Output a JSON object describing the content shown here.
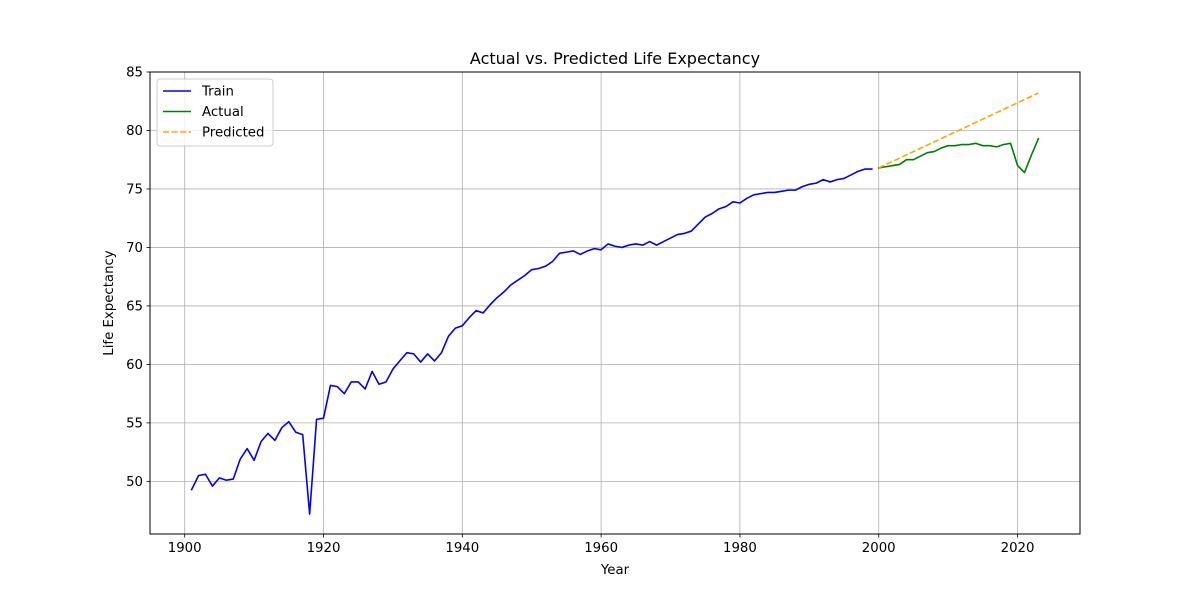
{
  "chart_data": {
    "type": "line",
    "title": "Actual vs. Predicted Life Expectancy",
    "xlabel": "Year",
    "ylabel": "Life Expectancy",
    "xlim": [
      1895,
      2029
    ],
    "ylim": [
      45.5,
      85
    ],
    "xticks": [
      1900,
      1920,
      1940,
      1960,
      1980,
      2000,
      2020
    ],
    "yticks": [
      50,
      55,
      60,
      65,
      70,
      75,
      80,
      85
    ],
    "grid": true,
    "legend_position": "top-left",
    "series": [
      {
        "name": "Train",
        "color": "#0000ff",
        "style": "solid",
        "x": [
          1901,
          1902,
          1903,
          1904,
          1905,
          1906,
          1907,
          1908,
          1909,
          1910,
          1911,
          1912,
          1913,
          1914,
          1915,
          1916,
          1917,
          1918,
          1919,
          1920,
          1921,
          1922,
          1923,
          1924,
          1925,
          1926,
          1927,
          1928,
          1929,
          1930,
          1931,
          1932,
          1933,
          1934,
          1935,
          1936,
          1937,
          1938,
          1939,
          1940,
          1941,
          1942,
          1943,
          1944,
          1945,
          1946,
          1947,
          1948,
          1949,
          1950,
          1951,
          1952,
          1953,
          1954,
          1955,
          1956,
          1957,
          1958,
          1959,
          1960,
          1961,
          1962,
          1963,
          1964,
          1965,
          1966,
          1967,
          1968,
          1969,
          1970,
          1971,
          1972,
          1973,
          1974,
          1975,
          1976,
          1977,
          1978,
          1979,
          1980,
          1981,
          1982,
          1983,
          1984,
          1985,
          1986,
          1987,
          1988,
          1989,
          1990,
          1991,
          1992,
          1993,
          1994,
          1995,
          1996,
          1997,
          1998,
          1999
        ],
        "y": [
          49.3,
          50.5,
          50.6,
          49.6,
          50.3,
          50.1,
          50.2,
          51.9,
          52.8,
          51.8,
          53.4,
          54.1,
          53.5,
          54.6,
          55.1,
          54.2,
          54.0,
          47.2,
          55.3,
          55.4,
          58.2,
          58.1,
          57.5,
          58.5,
          58.5,
          57.9,
          59.4,
          58.3,
          58.5,
          59.6,
          60.3,
          61.0,
          60.9,
          60.2,
          60.9,
          60.3,
          61.0,
          62.4,
          63.1,
          63.3,
          64.0,
          64.6,
          64.4,
          65.1,
          65.7,
          66.2,
          66.8,
          67.2,
          67.6,
          68.1,
          68.2,
          68.4,
          68.8,
          69.5,
          69.6,
          69.7,
          69.4,
          69.7,
          69.9,
          69.8,
          70.3,
          70.1,
          70.0,
          70.2,
          70.3,
          70.2,
          70.5,
          70.2,
          70.5,
          70.8,
          71.1,
          71.2,
          71.4,
          72.0,
          72.6,
          72.9,
          73.3,
          73.5,
          73.9,
          73.8,
          74.2,
          74.5,
          74.6,
          74.7,
          74.7,
          74.8,
          74.9,
          74.9,
          75.2,
          75.4,
          75.5,
          75.8,
          75.6,
          75.8,
          75.9,
          76.2,
          76.5,
          76.7,
          76.7
        ]
      },
      {
        "name": "Actual",
        "color": "#008000",
        "style": "solid",
        "x": [
          2000,
          2001,
          2002,
          2003,
          2004,
          2005,
          2006,
          2007,
          2008,
          2009,
          2010,
          2011,
          2012,
          2013,
          2014,
          2015,
          2016,
          2017,
          2018,
          2019,
          2020,
          2021,
          2022,
          2023
        ],
        "y": [
          76.8,
          76.9,
          77.0,
          77.1,
          77.5,
          77.5,
          77.8,
          78.1,
          78.2,
          78.5,
          78.7,
          78.7,
          78.8,
          78.8,
          78.9,
          78.7,
          78.7,
          78.6,
          78.8,
          78.9,
          77.0,
          76.4,
          77.9,
          79.3
        ]
      },
      {
        "name": "Predicted",
        "color": "#ffa500",
        "style": "dashed",
        "x": [
          2000,
          2023
        ],
        "y": [
          76.8,
          83.2
        ]
      }
    ]
  }
}
